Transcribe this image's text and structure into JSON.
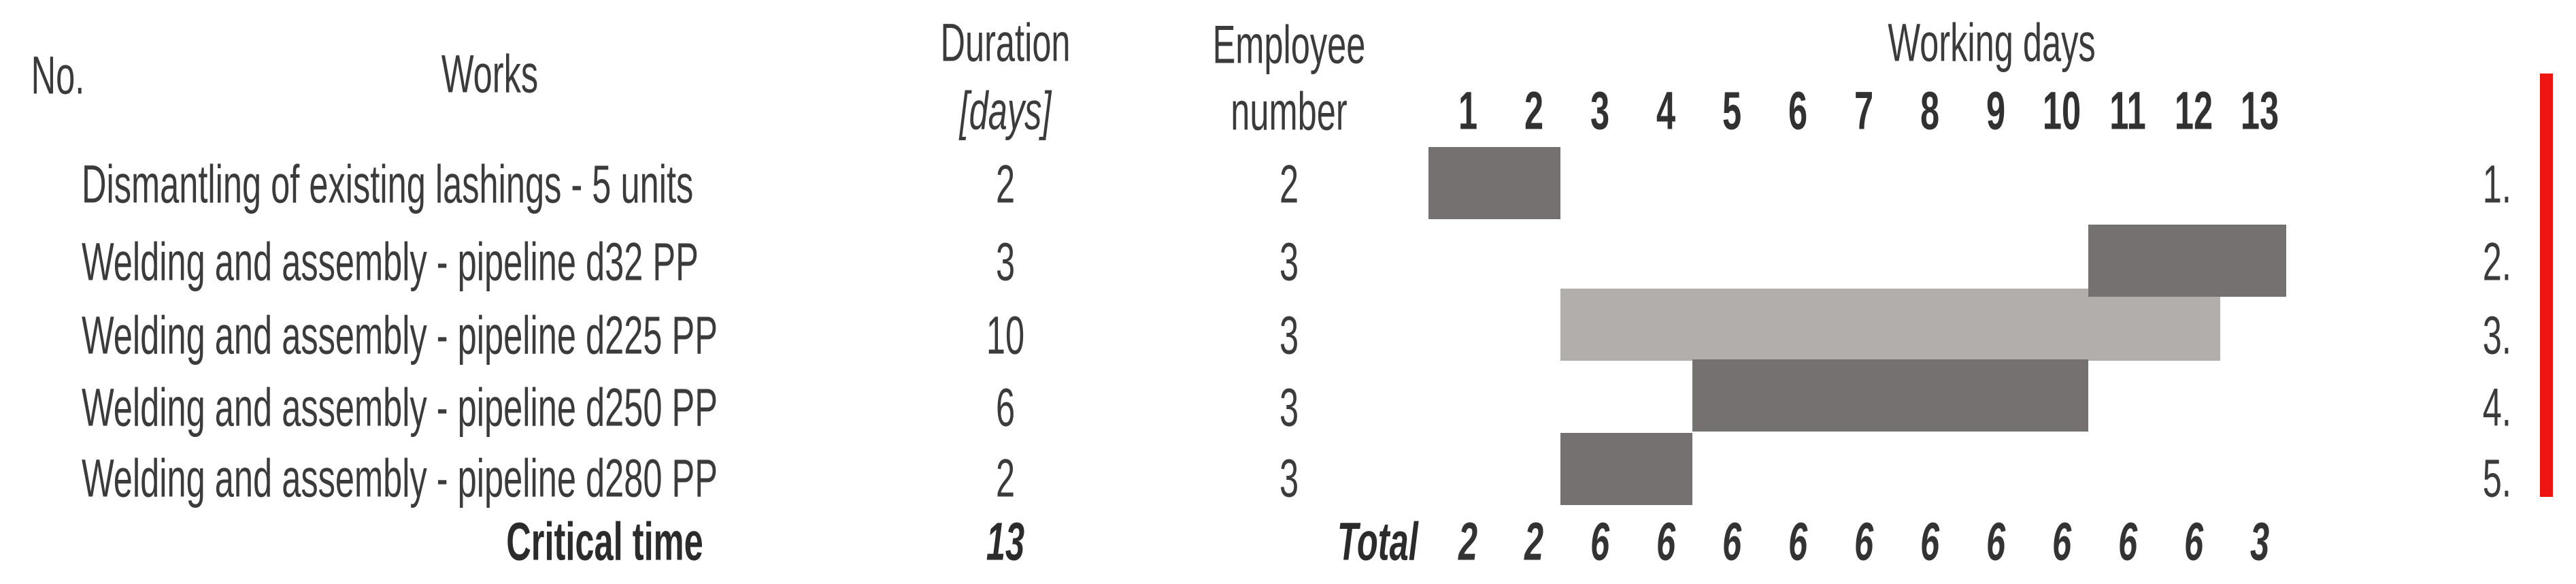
{
  "table": {
    "headers": {
      "no": "No.",
      "works": "Works",
      "duration_line1": "Duration",
      "duration_line2": "[days]",
      "employee_line1": "Employee",
      "employee_line2": "number",
      "working_days": "Working days"
    },
    "days": [
      "1",
      "2",
      "3",
      "4",
      "5",
      "6",
      "7",
      "8",
      "9",
      "10",
      "11",
      "12",
      "13"
    ],
    "rows": [
      {
        "no": "1.",
        "work": "Dismantling of existing lashings - 5 units",
        "duration": "2",
        "employees": "2",
        "bar": {
          "start_day": 1,
          "end_day": 2,
          "style": "dark"
        }
      },
      {
        "no": "2.",
        "work": "Welding and assembly - pipeline d32 PP",
        "duration": "3",
        "employees": "3",
        "bar": {
          "start_day": 11,
          "end_day": 13,
          "style": "dark"
        }
      },
      {
        "no": "3.",
        "work": "Welding and assembly - pipeline d225 PP",
        "duration": "10",
        "employees": "3",
        "bar": {
          "start_day": 3,
          "end_day": 12,
          "style": "light"
        }
      },
      {
        "no": "4.",
        "work": "Welding and assembly - pipeline d250 PP",
        "duration": "6",
        "employees": "3",
        "bar": {
          "start_day": 5,
          "end_day": 10,
          "style": "dark"
        }
      },
      {
        "no": "5.",
        "work": "Welding and assembly - pipeline d280 PP",
        "duration": "2",
        "employees": "3",
        "bar": {
          "start_day": 3,
          "end_day": 4,
          "style": "dark"
        }
      }
    ],
    "footer": {
      "critical_label": "Critical time",
      "critical_value": "13",
      "total_label": "Total",
      "totals": [
        "2",
        "2",
        "6",
        "6",
        "6",
        "6",
        "6",
        "6",
        "6",
        "6",
        "6",
        "6",
        "3"
      ]
    }
  },
  "colors": {
    "bar_dark": "#757170",
    "bar_light": "#b2aeab",
    "critical_line": "#ee1411",
    "text": "#3b3b3b"
  },
  "chart_data": {
    "type": "gantt",
    "title": "Working days",
    "xlabel": "Working days",
    "x_days": [
      1,
      2,
      3,
      4,
      5,
      6,
      7,
      8,
      9,
      10,
      11,
      12,
      13
    ],
    "xlim": [
      1,
      13
    ],
    "tasks": [
      {
        "no": 1,
        "name": "Dismantling of existing lashings - 5 units",
        "duration_days": 2,
        "employee_number": 2,
        "start_day": 1,
        "end_day": 2,
        "critical_dark_bar": true
      },
      {
        "no": 2,
        "name": "Welding and assembly - pipeline d32 PP",
        "duration_days": 3,
        "employee_number": 3,
        "start_day": 11,
        "end_day": 13,
        "critical_dark_bar": true
      },
      {
        "no": 3,
        "name": "Welding and assembly - pipeline d225 PP",
        "duration_days": 10,
        "employee_number": 3,
        "start_day": 3,
        "end_day": 12,
        "critical_dark_bar": false
      },
      {
        "no": 4,
        "name": "Welding and assembly - pipeline d250 PP",
        "duration_days": 6,
        "employee_number": 3,
        "start_day": 5,
        "end_day": 10,
        "critical_dark_bar": true
      },
      {
        "no": 5,
        "name": "Welding and assembly - pipeline d280 PP",
        "duration_days": 2,
        "employee_number": 3,
        "start_day": 3,
        "end_day": 4,
        "critical_dark_bar": true
      }
    ],
    "critical_time_days": 13,
    "daily_employee_totals": [
      2,
      2,
      6,
      6,
      6,
      6,
      6,
      6,
      6,
      6,
      6,
      6,
      3
    ],
    "legend_position": "none",
    "grid": false
  }
}
